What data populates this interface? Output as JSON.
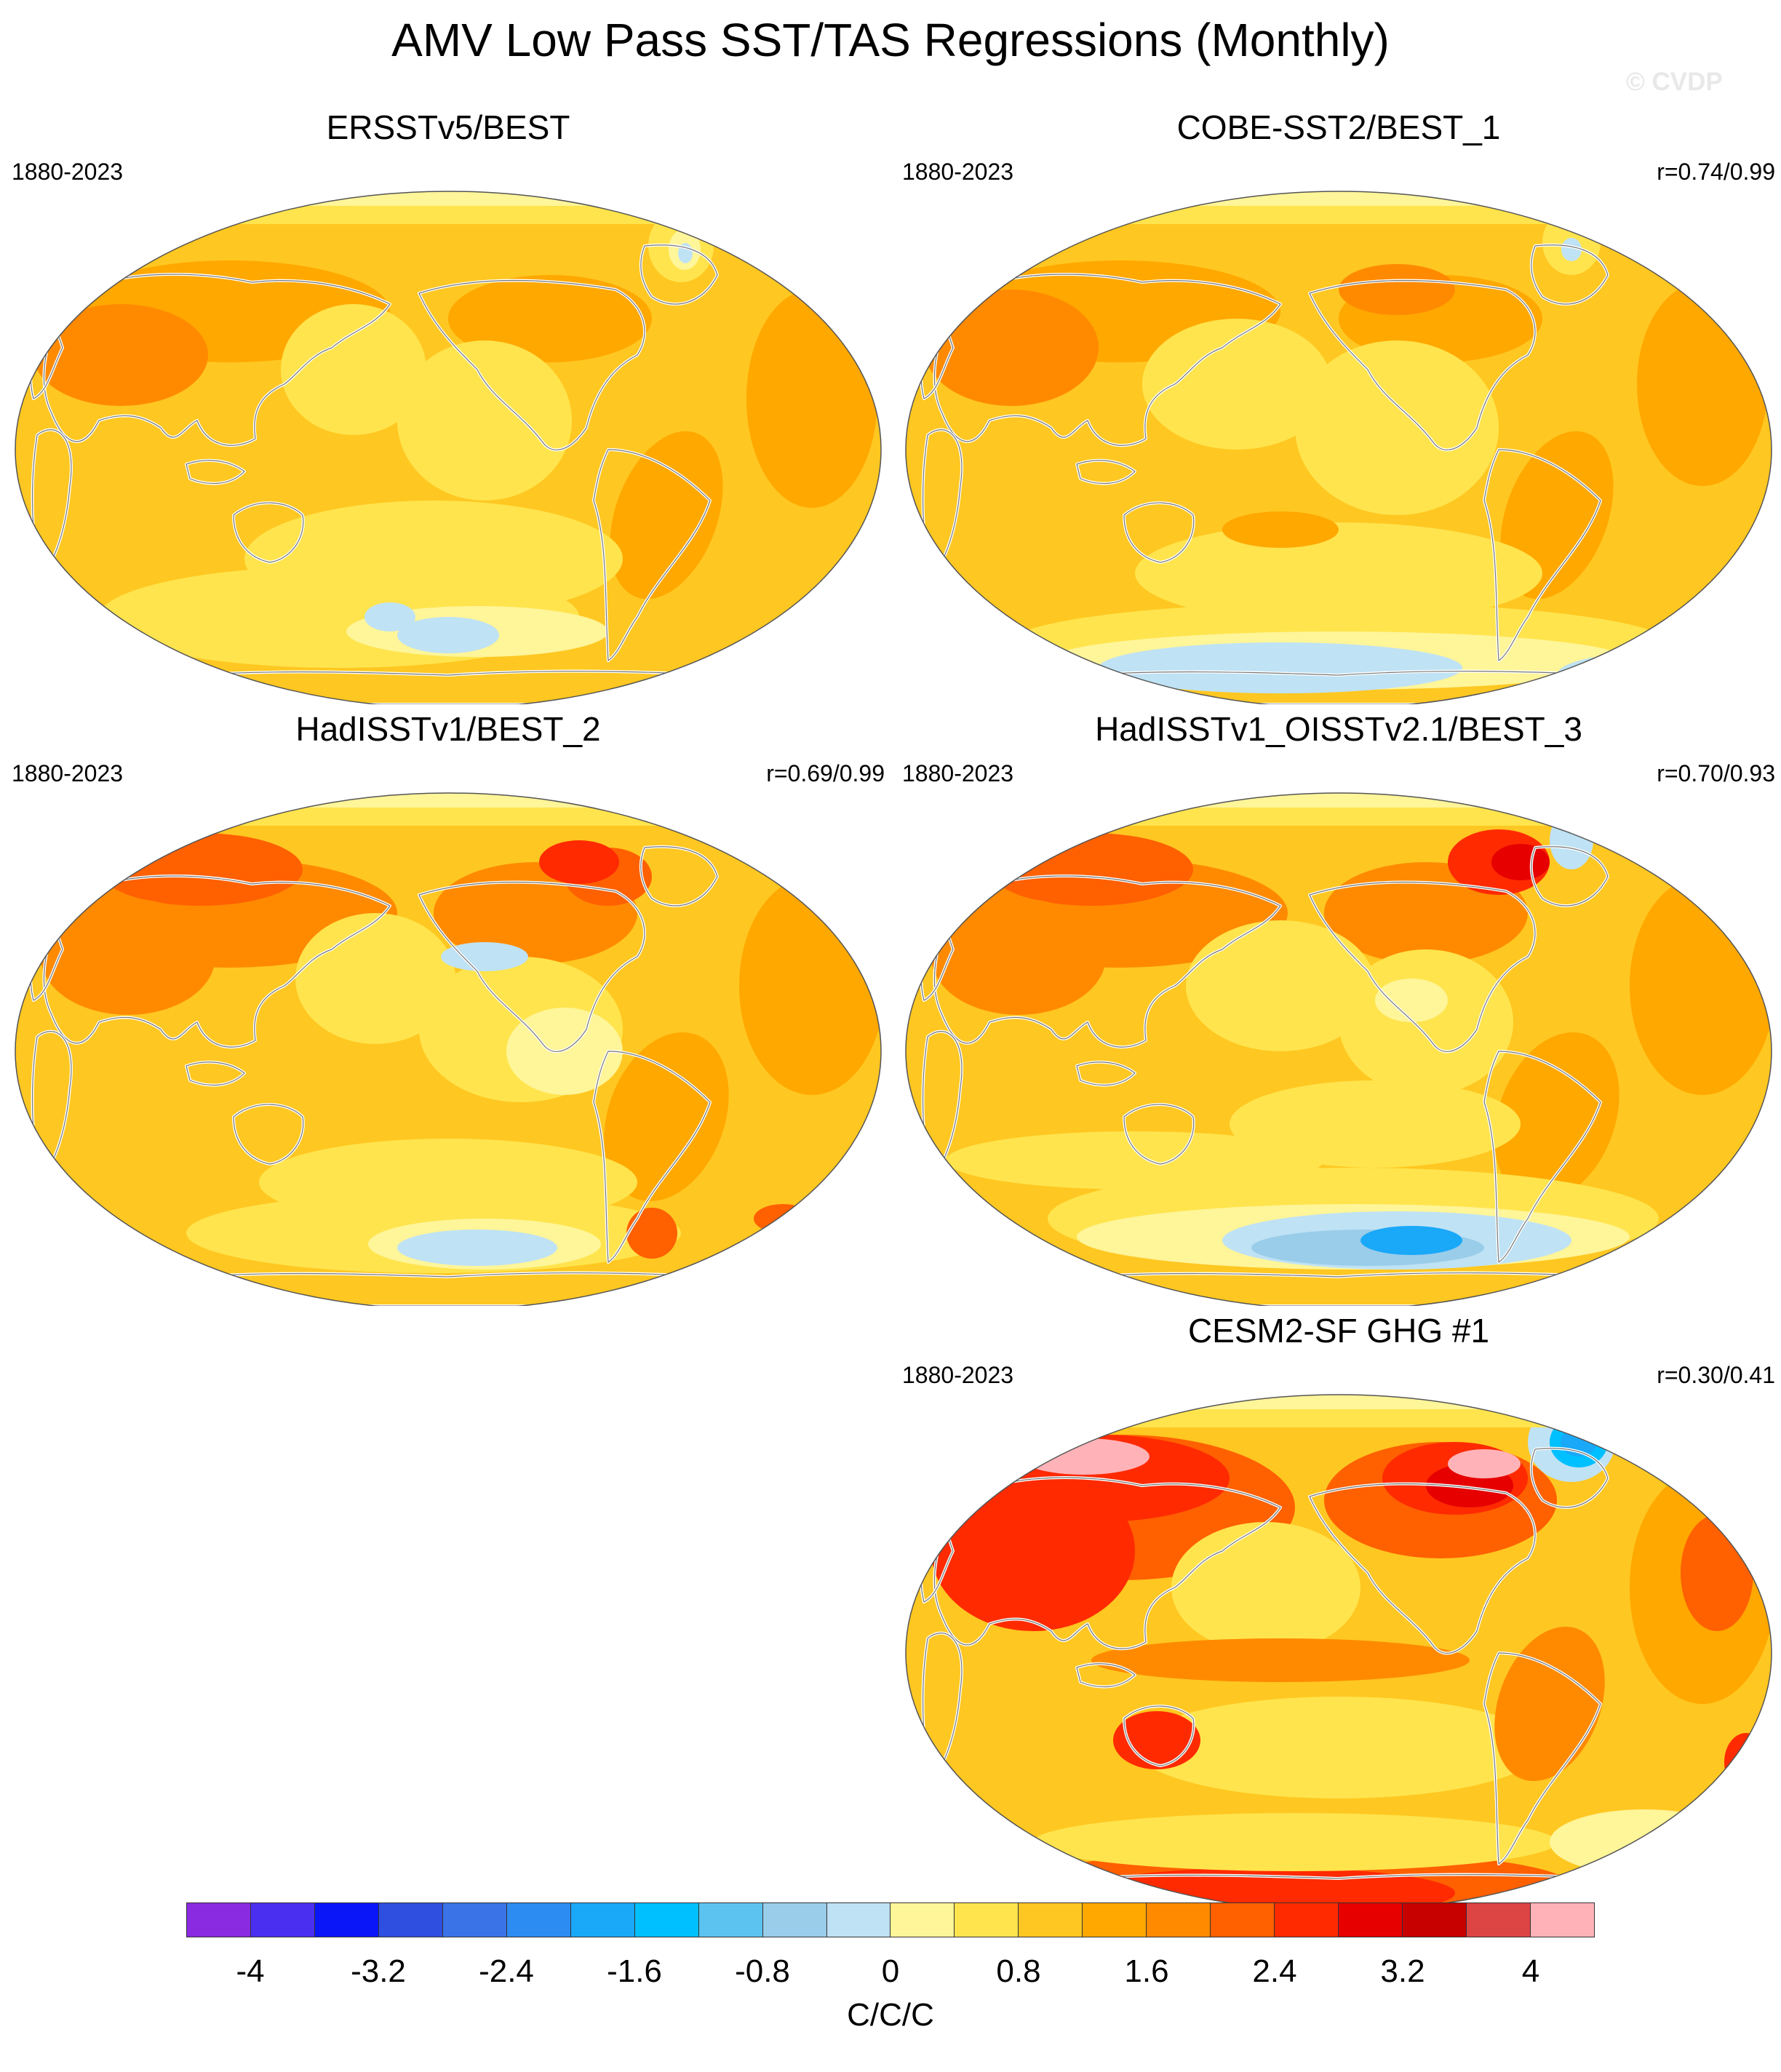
{
  "title": "AMV Low Pass SST/TAS Regressions (Monthly)",
  "watermark": "© CVDP",
  "panels": [
    {
      "title": "ERSSTv5/BEST",
      "period": "1880-2023",
      "correlation": "",
      "style": "ersst"
    },
    {
      "title": "COBE-SST2/BEST_1",
      "period": "1880-2023",
      "correlation": "r=0.74/0.99",
      "style": "cobe"
    },
    {
      "title": "HadISSTv1/BEST_2",
      "period": "1880-2023",
      "correlation": "r=0.69/0.99",
      "style": "hadisst"
    },
    {
      "title": "HadISSTv1_OISSTv2.1/BEST_3",
      "period": "1880-2023",
      "correlation": "r=0.70/0.93",
      "style": "oisst"
    },
    {
      "title": "CESM2-SF GHG #1",
      "period": "1880-2023",
      "correlation": "r=0.30/0.41",
      "style": "cesm"
    }
  ],
  "colorbar": {
    "colors": [
      "#8a2be2",
      "#4b2ff0",
      "#0a16f8",
      "#2f4fe0",
      "#3a73e8",
      "#2c8cf2",
      "#1aa8f8",
      "#00c0ff",
      "#5cc3f0",
      "#99cdea",
      "#bfe2f4",
      "#fff599",
      "#ffe44d",
      "#ffc721",
      "#ffa800",
      "#ff8a00",
      "#ff6000",
      "#ff2a00",
      "#e60000",
      "#c70000",
      "#dd4444",
      "#ffb3b8"
    ],
    "tick_labels": [
      "-4",
      "-3.2",
      "-2.4",
      "-1.6",
      "-0.8",
      "0",
      "0.8",
      "1.6",
      "2.4",
      "3.2",
      "4"
    ],
    "units": "C/C/C"
  }
}
